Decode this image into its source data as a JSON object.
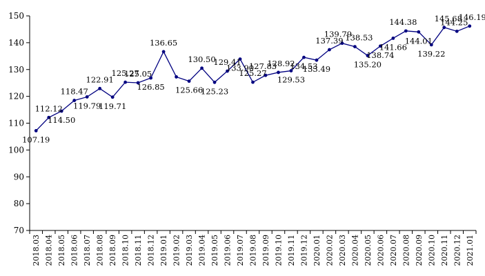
{
  "chart_data": {
    "type": "line",
    "title": "",
    "xlabel": "",
    "ylabel": "",
    "ylim": [
      70,
      150
    ],
    "yticks": [
      70,
      80,
      90,
      100,
      110,
      120,
      130,
      140,
      150
    ],
    "grid": false,
    "legend": "none",
    "series_color": "#000080",
    "categories": [
      "2018.03",
      "2018.04",
      "2018.05",
      "2018.06",
      "2018.07",
      "2018.08",
      "2018.09",
      "2018.10",
      "2018.11",
      "2018.12",
      "2019.01",
      "2019.02",
      "2019.03",
      "2019.04",
      "2019.05",
      "2019.06",
      "2019.07",
      "2019.08",
      "2019.09",
      "2019.10",
      "2019.11",
      "2019.12",
      "2020.01",
      "2020.02",
      "2020.03",
      "2020.04",
      "2020.05",
      "2020.06",
      "2020.07",
      "2020.08",
      "2020.09",
      "2020.10",
      "2020.11",
      "2020.12",
      "2021.01"
    ],
    "values": [
      107.19,
      112.12,
      114.5,
      118.47,
      119.79,
      122.91,
      119.71,
      125.27,
      125.05,
      126.85,
      136.65,
      127.25,
      125.66,
      130.5,
      125.23,
      129.41,
      133.9,
      125.27,
      127.83,
      128.92,
      129.53,
      134.53,
      133.49,
      137.39,
      139.79,
      138.53,
      135.2,
      138.74,
      141.66,
      144.38,
      144.01,
      139.22,
      145.68,
      144.25,
      146.19
    ],
    "label_texts": [
      "107.19",
      "112.12",
      "114.50",
      "118.47",
      "119.79",
      "122.91",
      "119.71",
      "125.27",
      "125.05",
      "126.85",
      "136.65",
      "",
      "125.66",
      "130.50",
      "125.23",
      "129.41",
      "133.90",
      "125.27",
      "127.83",
      "128.92",
      "129.53",
      "134.53",
      "133.49",
      "137.39",
      "139.79",
      "138.53",
      "135.20",
      "138.74",
      "141.66",
      "144.38",
      "144.01",
      "139.22",
      "145.68",
      "144.25",
      "146.19"
    ]
  }
}
